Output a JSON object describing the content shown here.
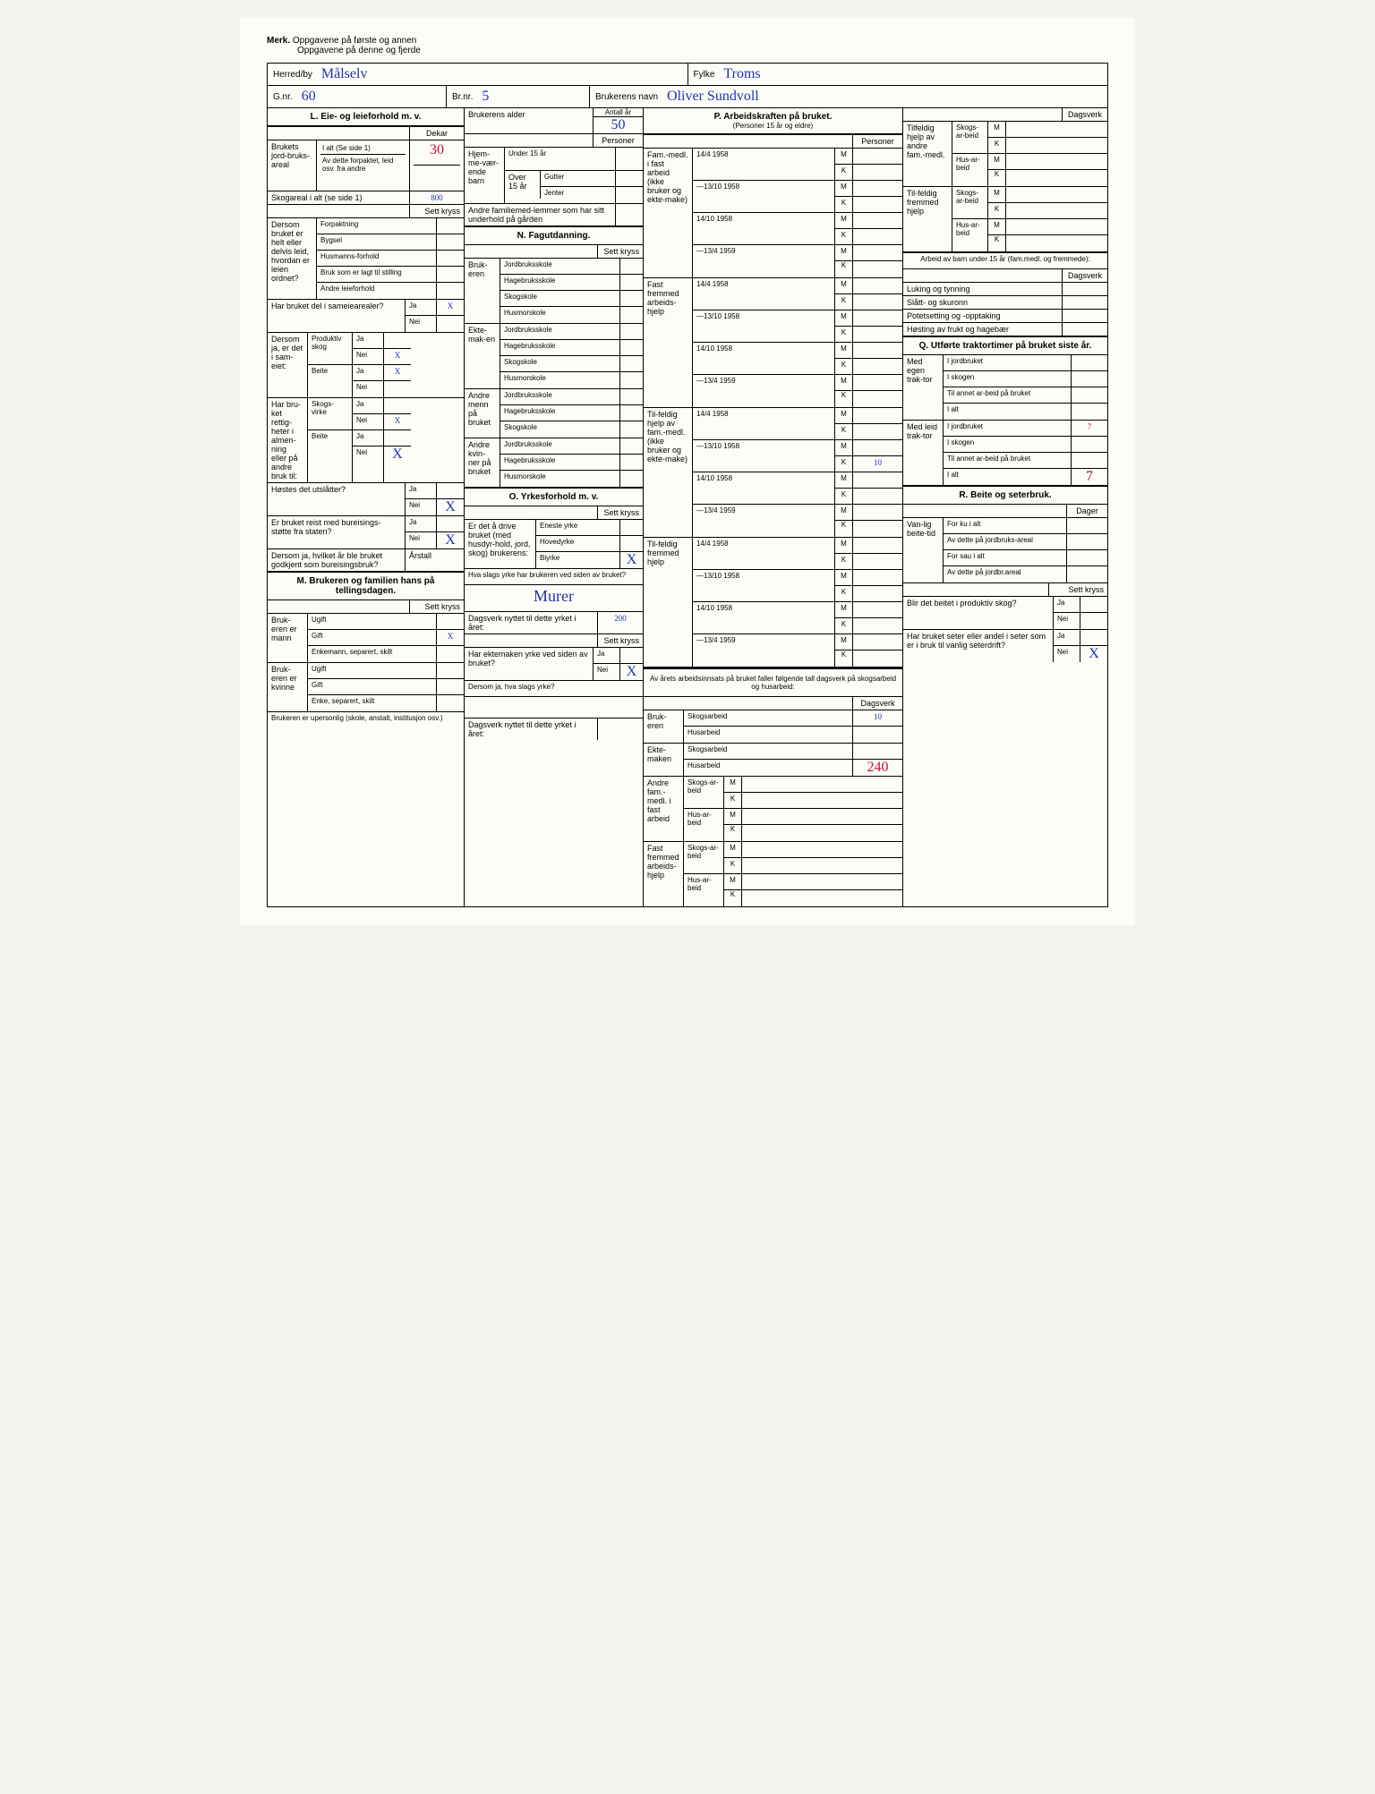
{
  "header_note": {
    "bold": "Merk.",
    "line1": "Oppgavene på første og annen",
    "line2": "Oppgavene på denne og fjerde"
  },
  "top": {
    "herred_label": "Herred/by",
    "herred_val": "Målselv",
    "fylke_label": "Fylke",
    "fylke_val": "Troms",
    "gnr_label": "G.nr.",
    "gnr_val": "60",
    "brnr_label": "Br.nr.",
    "brnr_val": "5",
    "brukerens_navn_label": "Brukerens navn",
    "brukerens_navn_val": "Oliver Sundvoll"
  },
  "L": {
    "title": "L. Eie- og leieforhold m. v.",
    "dekar": "Dekar",
    "brukets_label": "Brukets jord-bruks-areal",
    "ialt": "I alt (Se side 1)",
    "ialt_val": "30",
    "avdette": "Av dette forpaktet, leid osv. fra andre",
    "skogareal": "Skogareal i alt (se side 1)",
    "skogareal_val": "800",
    "settkryss": "Sett kryss",
    "dersom_label": "Dersom bruket er helt eller delvis leid, hvordan er leien ordnet?",
    "forpaktning": "Forpaktning",
    "bygsel": "Bygsel",
    "husmanns": "Husmanns-forhold",
    "bruk_som": "Bruk som er lagt til stilling",
    "andre_leie": "Andre leieforhold",
    "sameie_q": "Har bruket del i sameiearealer?",
    "ja": "Ja",
    "nei": "Nei",
    "x": "X",
    "dersom_ja": "Dersom ja, er det i sam-eiet:",
    "prod_skog": "Produktiv skog",
    "beite": "Beite",
    "har_bruket_rett": "Har bru-ket rettig-heter i almen-ning eller på andre bruk til:",
    "skogs_virke": "Skogs-virke",
    "hostes": "Høstes det utslåtter?",
    "bureising_q": "Er bruket reist med bureisings-støtte fra staten?",
    "dersom_ja_arstall": "Dersom ja, hvilket år ble bruket godkjent som bureisingsbruk?",
    "arstall": "Årstall"
  },
  "brukerens_alder": {
    "label": "Brukerens alder",
    "antall_ar": "Antall år",
    "val": "50",
    "personer": "Personer"
  },
  "hjemme": {
    "label": "Hjem-me-vær-ende barn",
    "under15": "Under 15 år",
    "over15": "Over 15 år",
    "gutter": "Gutter",
    "jenter": "Jenter"
  },
  "andre_fam": "Andre familiemed-lemmer som har sitt underhold på gården",
  "N": {
    "title": "N. Fagutdanning.",
    "settkryss": "Sett kryss",
    "brukeren": "Bruk-eren",
    "ektemaken": "Ekte-mak-en",
    "andre_menn": "Andre menn på bruket",
    "andre_kvinner": "Andre kvin-ner på bruket",
    "jordbruk": "Jordbruksskole",
    "hagebruk": "Hagebruksskole",
    "skogskole": "Skogskole",
    "husmor": "Husmorskole"
  },
  "O": {
    "title": "O. Yrkesforhold m. v.",
    "settkryss": "Sett kryss",
    "q1": "Er det å drive bruket (med husdyr-hold, jord, skog) brukerens:",
    "eneste": "Eneste yrke",
    "hoved": "Hovedyrke",
    "biyrke": "Biyrke",
    "biyrke_x": "X",
    "q2": "Hva slags yrke har brukeren ved siden av bruket?",
    "q2_val": "Murer",
    "dagsverk_label": "Dagsverk nyttet til dette yrket i året:",
    "dagsverk_val": "200",
    "ekte_q": "Har ektemaken yrke ved siden av bruket?",
    "ekte_nei_x": "X",
    "dersom_ja": "Dersom ja, hva slags yrke?",
    "dagsverk2": "Dagsverk nyttet til dette yrket i året:"
  },
  "M": {
    "title": "M. Brukeren og familien hans på tellingsdagen.",
    "settkryss": "Sett kryss",
    "bruk_mann": "Bruk-eren er mann",
    "ugift": "Ugift",
    "gift": "Gift",
    "gift_x": "X",
    "enkemann": "Enkemann, separert, skilt",
    "bruk_kvinne": "Bruk-eren er kvinne",
    "enke": "Enke, separert, skilt",
    "upersonlig": "Brukeren er upersonlig (skole, anstalt, institusjon osv.)"
  },
  "P": {
    "title": "P. Arbeidskraften på bruket.",
    "subtitle": "(Personer 15 år og eldre)",
    "personer": "Personer",
    "fam_fast": "Fam.-medl. i fast arbeid (ikke bruker og ekte-make)",
    "fast_fremmed": "Fast fremmed arbeids-hjelp",
    "tilfeldig_fam": "Til-feldig hjelp av fam.-medl. (ikke bruker og ekte-make)",
    "tilfeldig_fremmed": "Til-feldig fremmed hjelp",
    "p1": "14/4 1958",
    "p2": "—13/10 1958",
    "p3": "14/10 1958",
    "p4": "—13/4 1959",
    "m": "M",
    "k": "K",
    "tilfeldig_val": "10",
    "av_arets": "Av årets arbeidsinnsats på bruket faller følgende tall dagsverk på skogsarbeid og husarbeid:",
    "dagsverk": "Dagsverk",
    "brukeren": "Bruk-eren",
    "ektemaken": "Ekte-maken",
    "skogsarbeid": "Skogsarbeid",
    "husarbeid": "Husarbeid",
    "brukeren_skog_val": "10",
    "ektemaken_hus_val": "240",
    "andre_fam_fast": "Andre fam.-medl. i fast arbeid",
    "fast_fremmed2": "Fast fremmed arbeids-hjelp",
    "skogs_arbeid": "Skogs-ar-beid",
    "hus_arbeid": "Hus-ar-beid"
  },
  "P_right": {
    "dagsverk": "Dagsverk",
    "tilfeldig_andre": "Tilfeldig hjelp av andre fam.-medl.",
    "tilfeldig_fremmed": "Til-feldig fremmed hjelp",
    "skogs": "Skogs-ar-beid",
    "hus": "Hus-ar-beid",
    "m": "M",
    "k": "K",
    "barn_title": "Arbeid av barn under 15 år (fam.medl. og fremmede):",
    "luking": "Luking og tynning",
    "slatt": "Slått- og skuronn",
    "potet": "Potetsetting og -opptaking",
    "hosting": "Høsting av frukt og hagebær"
  },
  "Q": {
    "title": "Q. Utførte traktortimer på bruket siste år.",
    "med_egen": "Med egen trak-tor",
    "med_leid": "Med leid trak-tor",
    "jordbruket": "I jordbruket",
    "skogen": "I skogen",
    "annet": "Til annet ar-beid på bruket",
    "ialt": "I alt",
    "leid_jord_val": "7",
    "leid_ialt_val": "7"
  },
  "R": {
    "title": "R. Beite og seterbruk.",
    "dager": "Dager",
    "vanlig": "Van-lig beite-tid",
    "ku_ialt": "For ku i alt",
    "ku_jord": "Av dette på jordbruks-areal",
    "sau_ialt": "For sau i alt",
    "sau_jord": "Av dette på jordbr.areal",
    "settkryss": "Sett kryss",
    "beitet_q": "Blir det beitet i produktiv skog?",
    "seter_q": "Har bruket seter eller andel i seter som er i bruk til vanlig seterdrift?",
    "ja": "Ja",
    "nei": "Nei",
    "nei_x": "X"
  }
}
